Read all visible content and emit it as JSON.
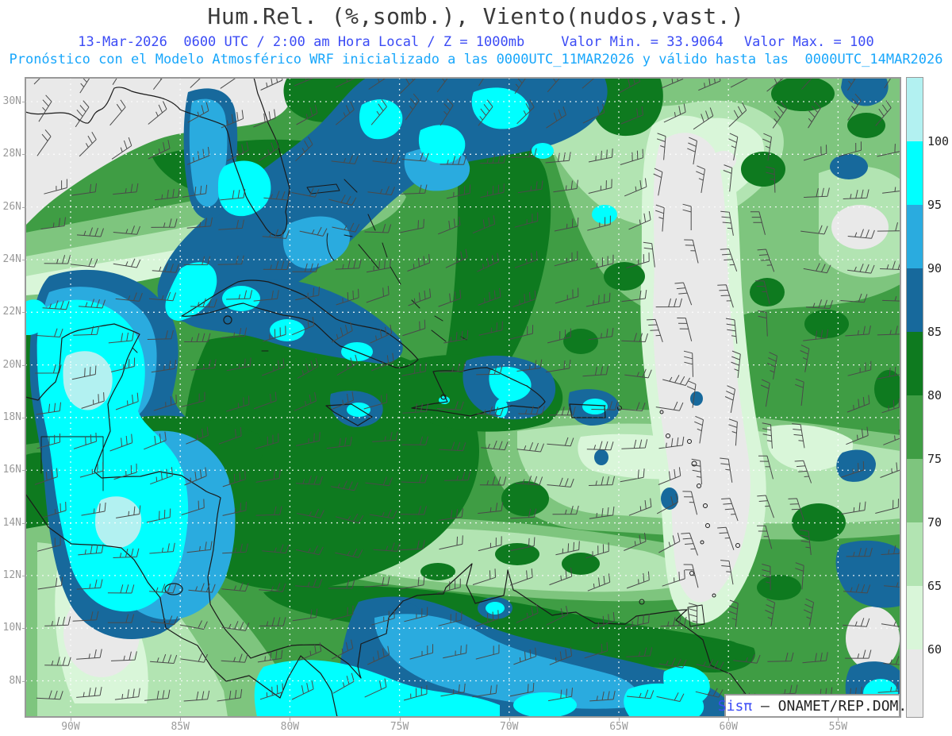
{
  "title": "Hum.Rel. (%,somb.), Viento(nudos,vast.)",
  "header": {
    "line1": {
      "datetime": "13-Mar-2026  0600 UTC / 2:00 am Hora Local / Z = 1000mb",
      "valor_min": "Valor Min. = 33.9064",
      "valor_max": "Valor Max. = 100"
    },
    "line2": "Pronóstico con el Modelo Atmosférico WRF inicializado a las 0000UTC_11MAR2026 y válido hasta las  0000UTC_14MAR2026"
  },
  "attribution": {
    "brand": "Sisπ",
    "text": " – ONAMET/REP.DOM."
  },
  "axes": {
    "lat_labels": [
      "30N",
      "28N",
      "26N",
      "24N",
      "22N",
      "20N",
      "18N",
      "16N",
      "14N",
      "12N",
      "10N",
      "8N"
    ],
    "lon_labels": [
      "90W",
      "85W",
      "80W",
      "75W",
      "70W",
      "65W",
      "60W",
      "55W"
    ]
  },
  "colorbar": {
    "tick_labels": [
      "100",
      "95",
      "90",
      "85",
      "80",
      "75",
      "70",
      "65",
      "60"
    ],
    "segment_colors_top_to_bottom": [
      "#b2f1f1",
      "#00ffff",
      "#2aabdf",
      "#17699c",
      "#0e7a1f",
      "#3f9d44",
      "#7ec57e",
      "#b2e4b2",
      "#d9f6d9",
      "#e9e9e9"
    ]
  },
  "palette": {
    "gray": "#e9e9e9",
    "h60": "#d9f6d9",
    "h65": "#b2e4b2",
    "h70": "#7ec57e",
    "h75": "#3f9d44",
    "h80": "#0e7a1f",
    "h85": "#17699c",
    "h90": "#2aabdf",
    "h95": "#00ffff",
    "h100": "#b2f1f1",
    "title_color": "#3a3a3a",
    "line1_color": "#3b4bf5",
    "line2_color": "#19a7fb",
    "axis_label_color": "#9a9a9a",
    "coast_color": "#1a1a1a",
    "barb_color": "#4a4a4a",
    "grid_color": "#ffffff",
    "brand_color": "#3b4bf5"
  },
  "chart_data": {
    "type": "heatmap",
    "title": "Hum.Rel. (%,somb.), Viento(nudos,vast.)",
    "field": "Relative humidity (%, shaded) and wind (knots, barbs) at Z = 1000mb",
    "model": "WRF",
    "initialized": "0000UTC_11MAR2026",
    "valid_until": "0000UTC_14MAR2026",
    "forecast_time": "13-Mar-2026 0600 UTC / 2:00 am Hora Local",
    "valor_min": 33.9064,
    "valor_max": 100,
    "colorbar_levels": [
      60,
      65,
      70,
      75,
      80,
      85,
      90,
      95,
      100
    ],
    "colorbar_colors_low_to_high": [
      "#e9e9e9",
      "#d9f6d9",
      "#b2e4b2",
      "#7ec57e",
      "#3f9d44",
      "#0e7a1f",
      "#17699c",
      "#2aabdf",
      "#00ffff",
      "#b2f1f1"
    ],
    "lat_ticks_deg_n": [
      30,
      28,
      26,
      24,
      22,
      20,
      18,
      16,
      14,
      12,
      10,
      8
    ],
    "lon_ticks_deg_w": [
      90,
      85,
      80,
      75,
      70,
      65,
      60,
      55
    ],
    "grid": "dotted white graticule",
    "legend_position": "right colorbar",
    "notable_features": [
      "Dry (<60%) gray air mass over the US Gulf coast (top-left)",
      "Dry gray tongue (<60%) over the central Atlantic near 60W from 28N to 12N",
      "95-100% humid band (cyan/dark blue) along the Gulf Stream and Florida",
      "Very humid core (95-100%) over Yucatan, Belize, Honduras and Nicaragua",
      "Humid band 85-100% along Costa Rica, Panama and the Venezuela/Colombia coast",
      "Local humid maxima over eastern Hispaniola, Puerto Rico, Jamaica and Trinidad",
      "Valor Min. = 33.9064, Valor Max. = 100"
    ]
  }
}
